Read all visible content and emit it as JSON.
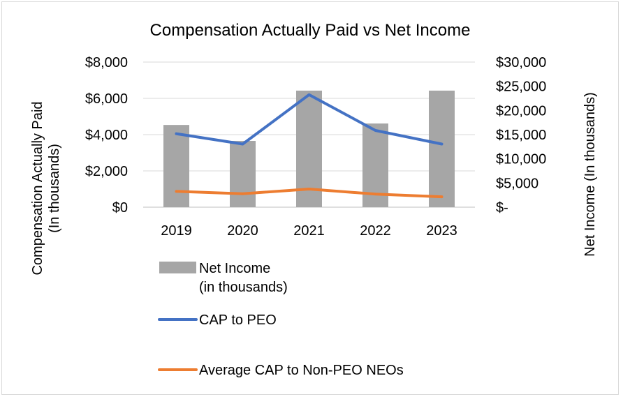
{
  "chart_data": {
    "type": "bar",
    "title": "Compensation Actually Paid vs Net Income",
    "ylabel_left": [
      "Compensation Actually Paid",
      "(In thousands)"
    ],
    "ylabel_right": "Net Income (In thousands)",
    "categories": [
      "2019",
      "2020",
      "2021",
      "2022",
      "2023"
    ],
    "left_axis": {
      "min": 0,
      "max": 8000,
      "ticks": [
        0,
        2000,
        4000,
        6000,
        8000
      ],
      "tick_labels": [
        "$0",
        "$2,000",
        "$4,000",
        "$6,000",
        "$8,000"
      ]
    },
    "right_axis": {
      "min": 0,
      "max": 30000,
      "ticks": [
        0,
        5000,
        10000,
        15000,
        20000,
        25000,
        30000
      ],
      "tick_labels": [
        "$-",
        "$5,000",
        "$10,000",
        "$15,000",
        "$20,000",
        "$25,000",
        "$30,000"
      ]
    },
    "grid": true,
    "series": [
      {
        "name": "Net Income (in thousands)",
        "legend_lines": [
          "Net Income",
          "(in thousands)"
        ],
        "type": "bar",
        "axis": "right",
        "color": "#a6a6a6",
        "values": [
          17000,
          13700,
          24100,
          17300,
          24100
        ]
      },
      {
        "name": "CAP to PEO",
        "legend_lines": [
          "CAP to PEO"
        ],
        "type": "line",
        "axis": "left",
        "color": "#4472c4",
        "values": [
          4050,
          3480,
          6200,
          4230,
          3480
        ]
      },
      {
        "name": "Average CAP to Non-PEO NEOs",
        "legend_lines": [
          "Average CAP to Non-PEO NEOs"
        ],
        "type": "line",
        "axis": "left",
        "color": "#ed7d31",
        "values": [
          870,
          740,
          1000,
          720,
          570
        ]
      }
    ],
    "legend_position": "bottom"
  }
}
